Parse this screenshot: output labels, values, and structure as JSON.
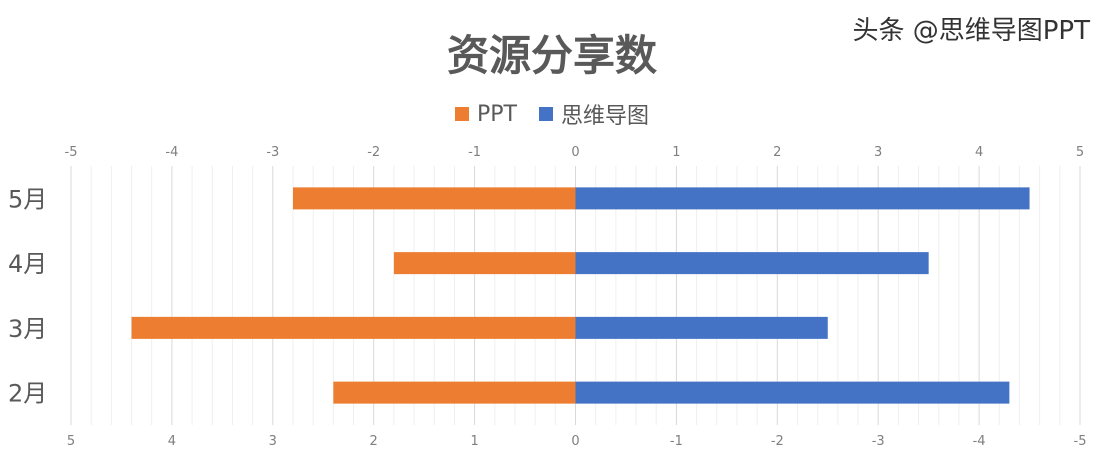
{
  "chart_data": {
    "type": "bar",
    "orientation": "horizontal",
    "title": "资源分享数",
    "categories": [
      "2月",
      "3月",
      "4月",
      "5月"
    ],
    "series": [
      {
        "name": "PPT",
        "color": "#ED7D31",
        "values": [
          -2.4,
          -4.4,
          -1.8,
          -2.8
        ]
      },
      {
        "name": "思维导图",
        "color": "#4472C4",
        "values": [
          4.3,
          2.5,
          3.5,
          4.5
        ]
      }
    ],
    "xlim": [
      -5,
      5
    ],
    "top_ticks": [
      "-5",
      "-4",
      "-3",
      "-2",
      "-1",
      "0",
      "1",
      "2",
      "3",
      "4",
      "5"
    ],
    "bottom_ticks": [
      "5",
      "4",
      "3",
      "2",
      "1",
      "0",
      "-1",
      "-2",
      "-3",
      "-4",
      "-5"
    ],
    "grid": true,
    "legend_position": "top"
  },
  "watermark": "头条 @思维导图PPT"
}
